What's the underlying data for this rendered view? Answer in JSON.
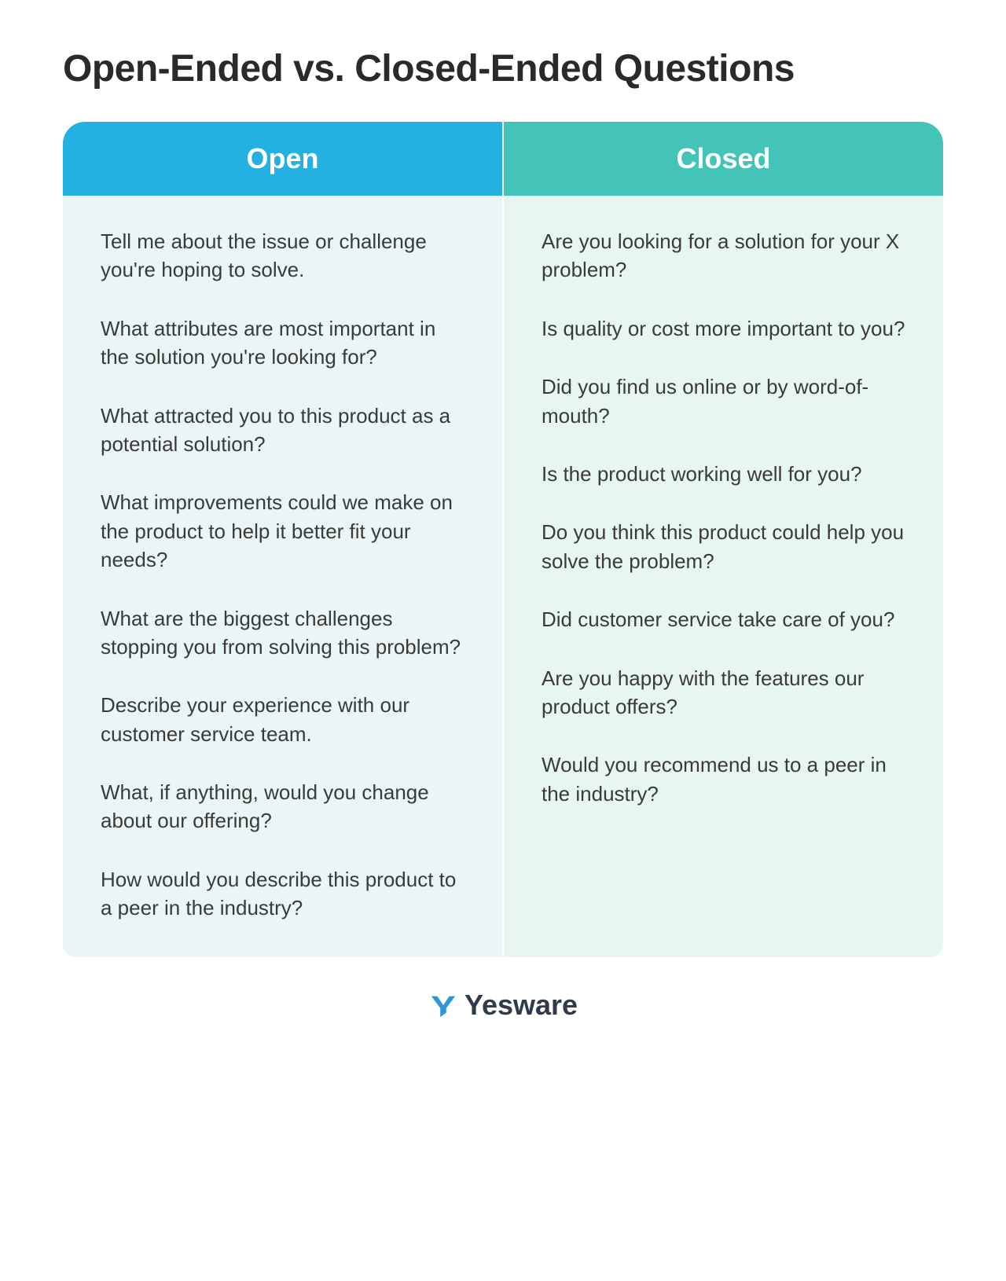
{
  "title": "Open-Ended vs. Closed-Ended Questions",
  "columns": {
    "open": {
      "header": "Open",
      "header_bg": "#24b1e1",
      "body_bg": "#eaf6f6",
      "text_color": "#3a3a3a",
      "questions": [
        "Tell me about the issue or challenge you're hoping to solve.",
        "What attributes are most important in the solution you're looking for?",
        "What attracted you to this product as a potential solution?",
        "What improvements could we make on the product to help it better fit your needs?",
        "What are the biggest challenges stopping you from solving this problem?",
        "Describe your experience with our customer service team.",
        "What, if anything, would you change about our offering?",
        "How would you describe this product to a peer in the industry?"
      ]
    },
    "closed": {
      "header": "Closed",
      "header_bg": "#44c3b9",
      "body_bg": "#e8f6f2",
      "text_color": "#3a3a3a",
      "questions": [
        "Are you looking for a solution for your X problem?",
        "Is quality or cost more important to you?",
        "Did you find us online or by word-of-mouth?",
        "Is the product working well for you?",
        "Do you think this product could help you solve the problem?",
        "Did customer service take care of you?",
        "Are you happy with the features our product offers?",
        "Would you recommend us to a peer in the industry?"
      ]
    }
  },
  "brand": {
    "name": "Yesware",
    "logo_color": "#2f97d8",
    "text_color": "#2f3b4a"
  },
  "style": {
    "title_fontsize": 48,
    "header_fontsize": 36,
    "body_fontsize": 26,
    "border_radius": 28,
    "background": "#ffffff"
  }
}
